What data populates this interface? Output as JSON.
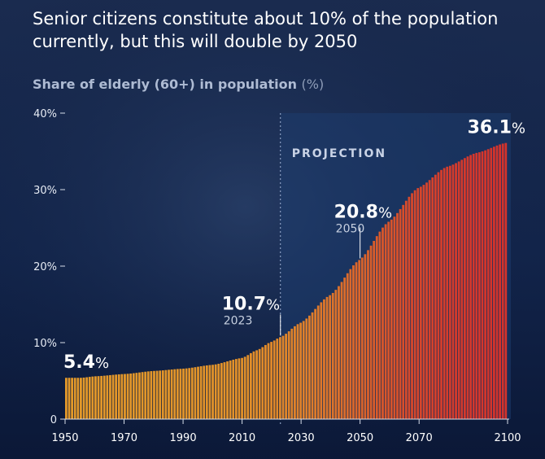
{
  "headline": "Senior citizens constitute about 10% of the population currently, but this will double by 2050",
  "subtitle": "Share of elderly (60+) in population",
  "unit": "(%)",
  "colors": {
    "background": "#0e1d3e",
    "projection_panel": "#1d3d6e",
    "bar_low": "#e39a2a",
    "bar_high": "#d3332c",
    "text": "#ffffff",
    "axis_text": "#ffffff"
  },
  "chart_data": {
    "type": "bar",
    "title": "Share of elderly (60+) in population",
    "unit": "%",
    "xlim": [
      1950,
      2100
    ],
    "ylim": [
      0,
      40
    ],
    "yticks": [
      0,
      10,
      20,
      30,
      40
    ],
    "ytick_labels": [
      "0",
      "10%",
      "20%",
      "30%",
      "40%"
    ],
    "xticks": [
      1950,
      1970,
      1990,
      2010,
      2030,
      2050,
      2070,
      2100
    ],
    "grid": false,
    "projection_start": 2023,
    "projection_label": "PROJECTION",
    "anchors": {
      "year": [
        1950,
        1955,
        1960,
        1970,
        1980,
        1990,
        2000,
        2010,
        2015,
        2020,
        2023,
        2030,
        2040,
        2050,
        2060,
        2070,
        2080,
        2090,
        2100
      ],
      "value": [
        5.4,
        5.4,
        5.6,
        5.9,
        6.3,
        6.6,
        7.1,
        8.0,
        9.0,
        10.1,
        10.7,
        12.6,
        16.2,
        20.8,
        25.8,
        30.2,
        33.0,
        34.8,
        36.1
      ]
    },
    "callouts": [
      {
        "year": 1950,
        "value_text": "5.4",
        "pct": "%",
        "year_label": ""
      },
      {
        "year": 2023,
        "value_text": "10.7",
        "pct": "%",
        "year_label": "2023"
      },
      {
        "year": 2050,
        "value_text": "20.8",
        "pct": "%",
        "year_label": "2050"
      },
      {
        "year": 2100,
        "value_text": "36.1",
        "pct": "%",
        "year_label": ""
      }
    ]
  }
}
